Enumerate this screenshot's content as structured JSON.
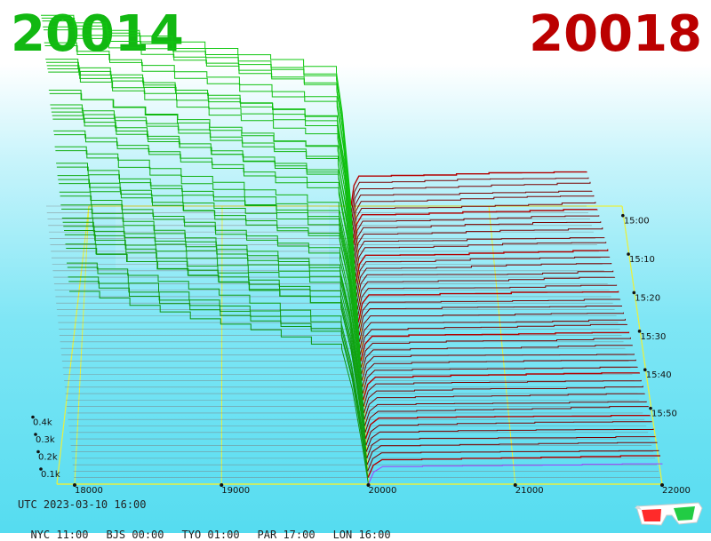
{
  "header": {
    "left_price": "20014",
    "right_price": "20018"
  },
  "footer": {
    "utc": "UTC 2023-03-10 16:00",
    "timezones": [
      "NYC 11:00",
      "BJS 00:00",
      "TYO 01:00",
      "PAR 17:00",
      "LON 16:00"
    ]
  },
  "colors": {
    "bid": "#11b811",
    "ask": "#b30000",
    "axis": "#e8f040",
    "baseline": "#7a7a7a"
  },
  "icon": "3d-glasses-icon",
  "chart_data": {
    "type": "area",
    "title": "",
    "x_axis": {
      "range": [
        18000,
        22000
      ],
      "ticks": [
        "18000",
        "19000",
        "20000",
        "21000",
        "22000"
      ]
    },
    "y_axis": {
      "range": [
        0,
        400
      ],
      "ticks": [
        "0.1k",
        "0.2k",
        "0.3k",
        "0.4k"
      ]
    },
    "time_axis": {
      "ticks": [
        "15:00",
        "15:10",
        "15:20",
        "15:30",
        "15:40",
        "15:50"
      ]
    },
    "mid_price": 20000,
    "series": [
      {
        "side": "bid",
        "top_depth": [
          630,
          620,
          590,
          560,
          560,
          520,
          500,
          500,
          480,
          460,
          440,
          430,
          420,
          410,
          400,
          400,
          390,
          370,
          360,
          350
        ]
      },
      {
        "side": "ask",
        "top_depth": [
          120,
          120,
          118,
          118,
          115,
          110,
          110,
          108,
          105,
          102,
          100,
          98,
          96,
          95,
          93,
          92,
          90,
          88,
          86,
          85
        ]
      }
    ]
  }
}
